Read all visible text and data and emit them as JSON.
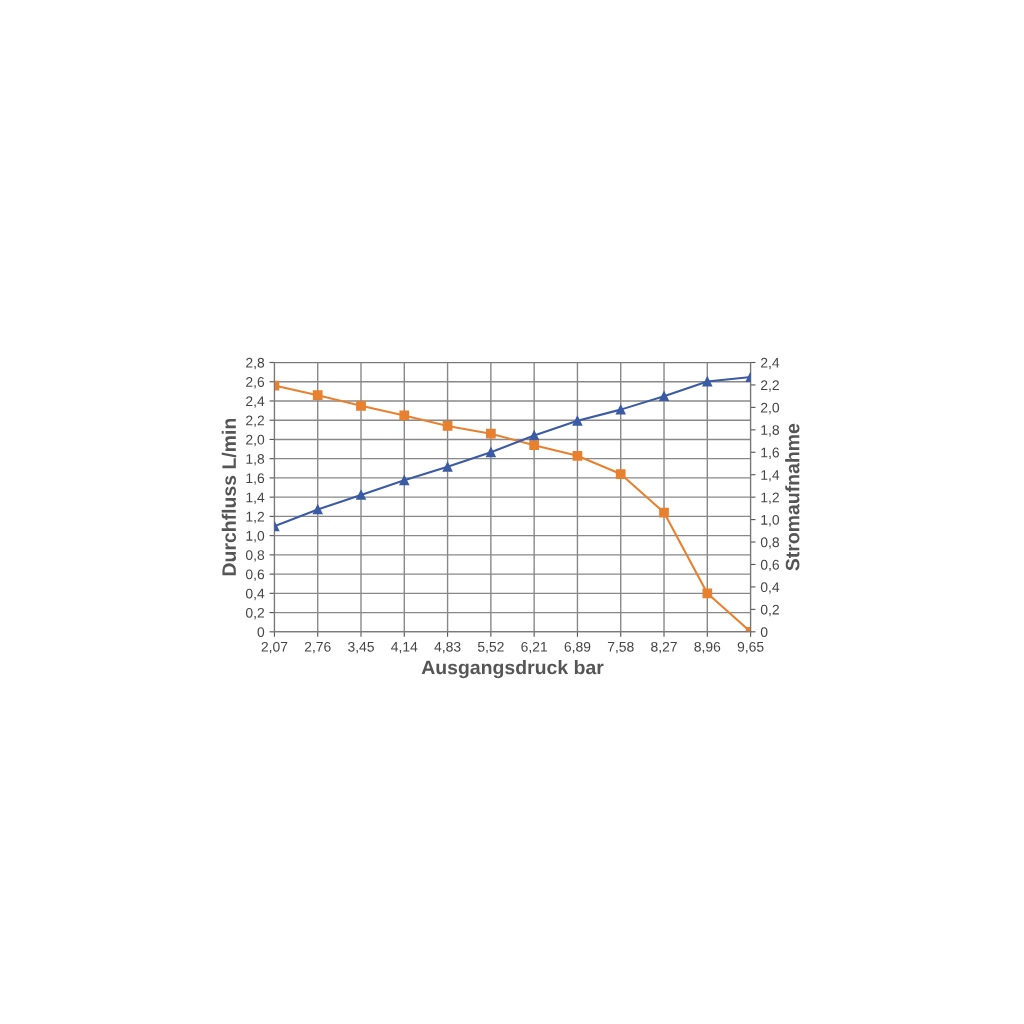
{
  "chart_data": {
    "type": "line",
    "xlabel": "Ausgangsdruck bar",
    "ylabel": "Durchfluss L/min",
    "y2label": "Stromaufnahme",
    "categories": [
      "2,07",
      "2,76",
      "3,45",
      "4,14",
      "4,83",
      "5,52",
      "6,21",
      "6,89",
      "7,58",
      "8,27",
      "8,96",
      "9,65"
    ],
    "series": [
      {
        "color": "#e8812f",
        "marker": "square",
        "values": [
          2.56,
          2.46,
          2.35,
          2.25,
          2.14,
          2.06,
          1.94,
          1.83,
          1.64,
          1.24,
          0.4,
          0
        ]
      },
      {
        "color": "#3b5ba5",
        "marker": "triangle",
        "axis": "y2",
        "values": [
          0.94,
          1.09,
          1.22,
          1.35,
          1.47,
          1.6,
          1.75,
          1.88,
          1.98,
          2.1,
          2.23,
          2.27
        ]
      }
    ],
    "ylim": [
      0,
      2.8
    ],
    "yticks": [
      0,
      {
        "value": 0.2,
        "label": "0,2"
      },
      {
        "value": 0.4,
        "label": "0,4"
      },
      {
        "value": 0.6,
        "label": "0,6"
      },
      {
        "value": 0.8,
        "label": "0,8"
      },
      {
        "value": 1.0,
        "label": "1,0"
      },
      {
        "value": 1.2,
        "label": "1,2"
      },
      {
        "value": 1.4,
        "label": "1,4"
      },
      {
        "value": 1.6,
        "label": "1,6"
      },
      {
        "value": 1.8,
        "label": "1,8"
      },
      {
        "value": 2.0,
        "label": "2,0"
      },
      {
        "value": 2.2,
        "label": "2,2"
      },
      {
        "value": 2.4,
        "label": "2,4"
      },
      {
        "value": 2.6,
        "label": "2,6"
      },
      {
        "value": 2.8,
        "label": "2,8"
      }
    ],
    "y2lim": [
      0,
      2.4
    ],
    "y2ticks": [
      0,
      {
        "value": 0.2,
        "label": "0,2"
      },
      {
        "value": 0.4,
        "label": "0,4"
      },
      {
        "value": 0.6,
        "label": "0,6"
      },
      {
        "value": 0.8,
        "label": "0,8"
      },
      {
        "value": 1.0,
        "label": "1,0"
      },
      {
        "value": 1.2,
        "label": "1,2"
      },
      {
        "value": 1.4,
        "label": "1,4"
      },
      {
        "value": 1.6,
        "label": "1,6"
      },
      {
        "value": 1.8,
        "label": "1,8"
      },
      {
        "value": 2.0,
        "label": "2,0"
      },
      {
        "value": 2.2,
        "label": "2,2"
      },
      {
        "value": 2.4,
        "label": "2,4"
      }
    ],
    "grid": true,
    "line_style": "solid"
  }
}
